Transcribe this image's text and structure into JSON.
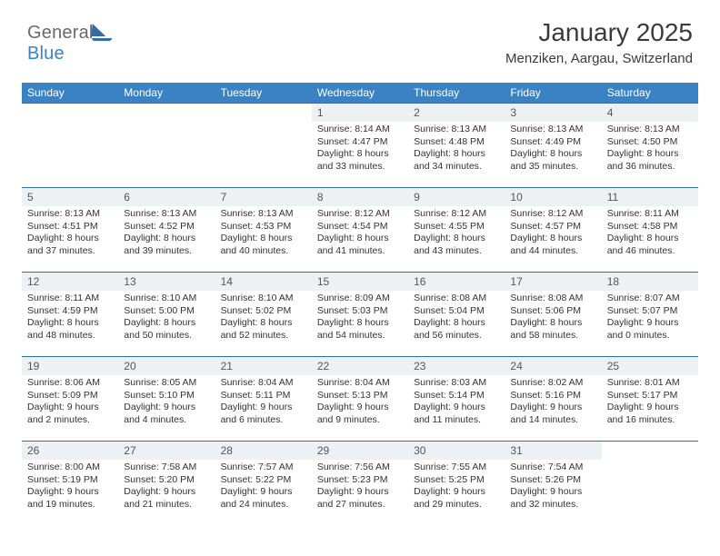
{
  "logo": {
    "text_a": "General",
    "text_b": "Blue"
  },
  "title": "January 2025",
  "subtitle": "Menziken, Aargau, Switzerland",
  "header_bg": "#3b82c4",
  "header_text": "#ffffff",
  "rule_color": "#2f6ea8",
  "daynum_bg": "#eef1f3",
  "background": "#ffffff",
  "text_color": "#333333",
  "columns": [
    "Sunday",
    "Monday",
    "Tuesday",
    "Wednesday",
    "Thursday",
    "Friday",
    "Saturday"
  ],
  "weeks": [
    [
      null,
      null,
      null,
      {
        "n": "1",
        "sunrise": "8:14 AM",
        "sunset": "4:47 PM",
        "dl_h": "8",
        "dl_m": "33"
      },
      {
        "n": "2",
        "sunrise": "8:13 AM",
        "sunset": "4:48 PM",
        "dl_h": "8",
        "dl_m": "34"
      },
      {
        "n": "3",
        "sunrise": "8:13 AM",
        "sunset": "4:49 PM",
        "dl_h": "8",
        "dl_m": "35"
      },
      {
        "n": "4",
        "sunrise": "8:13 AM",
        "sunset": "4:50 PM",
        "dl_h": "8",
        "dl_m": "36"
      }
    ],
    [
      {
        "n": "5",
        "sunrise": "8:13 AM",
        "sunset": "4:51 PM",
        "dl_h": "8",
        "dl_m": "37"
      },
      {
        "n": "6",
        "sunrise": "8:13 AM",
        "sunset": "4:52 PM",
        "dl_h": "8",
        "dl_m": "39"
      },
      {
        "n": "7",
        "sunrise": "8:13 AM",
        "sunset": "4:53 PM",
        "dl_h": "8",
        "dl_m": "40"
      },
      {
        "n": "8",
        "sunrise": "8:12 AM",
        "sunset": "4:54 PM",
        "dl_h": "8",
        "dl_m": "41"
      },
      {
        "n": "9",
        "sunrise": "8:12 AM",
        "sunset": "4:55 PM",
        "dl_h": "8",
        "dl_m": "43"
      },
      {
        "n": "10",
        "sunrise": "8:12 AM",
        "sunset": "4:57 PM",
        "dl_h": "8",
        "dl_m": "44"
      },
      {
        "n": "11",
        "sunrise": "8:11 AM",
        "sunset": "4:58 PM",
        "dl_h": "8",
        "dl_m": "46"
      }
    ],
    [
      {
        "n": "12",
        "sunrise": "8:11 AM",
        "sunset": "4:59 PM",
        "dl_h": "8",
        "dl_m": "48"
      },
      {
        "n": "13",
        "sunrise": "8:10 AM",
        "sunset": "5:00 PM",
        "dl_h": "8",
        "dl_m": "50"
      },
      {
        "n": "14",
        "sunrise": "8:10 AM",
        "sunset": "5:02 PM",
        "dl_h": "8",
        "dl_m": "52"
      },
      {
        "n": "15",
        "sunrise": "8:09 AM",
        "sunset": "5:03 PM",
        "dl_h": "8",
        "dl_m": "54"
      },
      {
        "n": "16",
        "sunrise": "8:08 AM",
        "sunset": "5:04 PM",
        "dl_h": "8",
        "dl_m": "56"
      },
      {
        "n": "17",
        "sunrise": "8:08 AM",
        "sunset": "5:06 PM",
        "dl_h": "8",
        "dl_m": "58"
      },
      {
        "n": "18",
        "sunrise": "8:07 AM",
        "sunset": "5:07 PM",
        "dl_h": "9",
        "dl_m": "0"
      }
    ],
    [
      {
        "n": "19",
        "sunrise": "8:06 AM",
        "sunset": "5:09 PM",
        "dl_h": "9",
        "dl_m": "2"
      },
      {
        "n": "20",
        "sunrise": "8:05 AM",
        "sunset": "5:10 PM",
        "dl_h": "9",
        "dl_m": "4"
      },
      {
        "n": "21",
        "sunrise": "8:04 AM",
        "sunset": "5:11 PM",
        "dl_h": "9",
        "dl_m": "6"
      },
      {
        "n": "22",
        "sunrise": "8:04 AM",
        "sunset": "5:13 PM",
        "dl_h": "9",
        "dl_m": "9"
      },
      {
        "n": "23",
        "sunrise": "8:03 AM",
        "sunset": "5:14 PM",
        "dl_h": "9",
        "dl_m": "11"
      },
      {
        "n": "24",
        "sunrise": "8:02 AM",
        "sunset": "5:16 PM",
        "dl_h": "9",
        "dl_m": "14"
      },
      {
        "n": "25",
        "sunrise": "8:01 AM",
        "sunset": "5:17 PM",
        "dl_h": "9",
        "dl_m": "16"
      }
    ],
    [
      {
        "n": "26",
        "sunrise": "8:00 AM",
        "sunset": "5:19 PM",
        "dl_h": "9",
        "dl_m": "19"
      },
      {
        "n": "27",
        "sunrise": "7:58 AM",
        "sunset": "5:20 PM",
        "dl_h": "9",
        "dl_m": "21"
      },
      {
        "n": "28",
        "sunrise": "7:57 AM",
        "sunset": "5:22 PM",
        "dl_h": "9",
        "dl_m": "24"
      },
      {
        "n": "29",
        "sunrise": "7:56 AM",
        "sunset": "5:23 PM",
        "dl_h": "9",
        "dl_m": "27"
      },
      {
        "n": "30",
        "sunrise": "7:55 AM",
        "sunset": "5:25 PM",
        "dl_h": "9",
        "dl_m": "29"
      },
      {
        "n": "31",
        "sunrise": "7:54 AM",
        "sunset": "5:26 PM",
        "dl_h": "9",
        "dl_m": "32"
      },
      null
    ]
  ],
  "labels": {
    "sunrise": "Sunrise:",
    "sunset": "Sunset:",
    "daylight": "Daylight:",
    "hours_word": "hours",
    "and_word": "and",
    "minutes_word": "minutes."
  }
}
